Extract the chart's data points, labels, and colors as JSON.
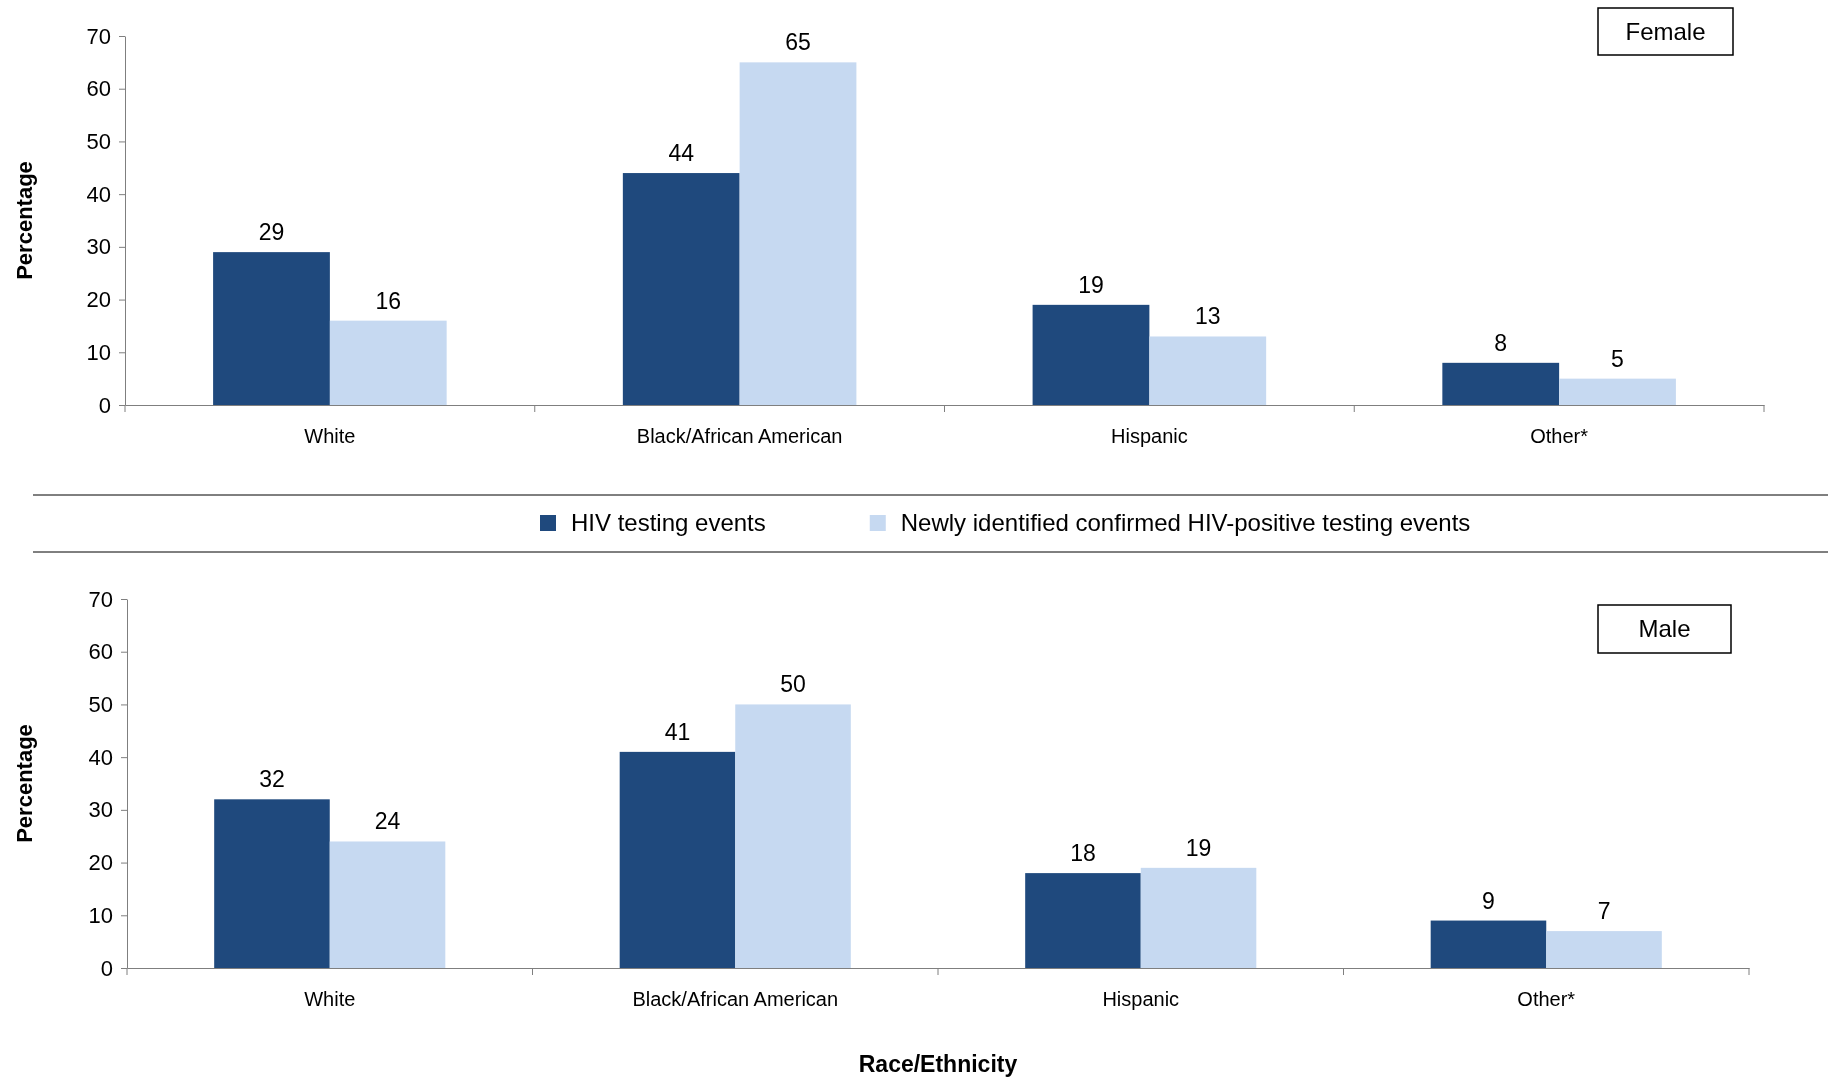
{
  "chart_data": [
    {
      "type": "bar",
      "ylabel": "Percentage",
      "categories": [
        "White",
        "Black/African American",
        "Hispanic",
        "Other*"
      ],
      "series": [
        {
          "name": "HIV testing events",
          "color": "#1f497d",
          "values": [
            29,
            44,
            19,
            8
          ]
        },
        {
          "name": "Newly identified confirmed HIV-positive testing events",
          "color": "#c6d9f1",
          "values": [
            16,
            65,
            13,
            5
          ]
        }
      ],
      "ylim": [
        0,
        70
      ],
      "yticks": [
        0,
        10,
        20,
        30,
        40,
        50,
        60,
        70
      ],
      "data_labels": true,
      "legend": "bottom",
      "annotations": [
        "Female"
      ]
    },
    {
      "type": "bar",
      "ylabel": "Percentage",
      "xlabel": "Race/Ethnicity",
      "categories": [
        "White",
        "Black/African American",
        "Hispanic",
        "Other*"
      ],
      "series": [
        {
          "color": "#1f497d",
          "values": [
            32,
            41,
            18,
            9
          ]
        },
        {
          "color": "#c6d9f1",
          "values": [
            24,
            50,
            19,
            7
          ]
        }
      ],
      "ylim": [
        0,
        70
      ],
      "yticks": [
        0,
        10,
        20,
        30,
        40,
        50,
        60,
        70
      ],
      "data_labels": true,
      "annotations": [
        "Male"
      ]
    }
  ]
}
